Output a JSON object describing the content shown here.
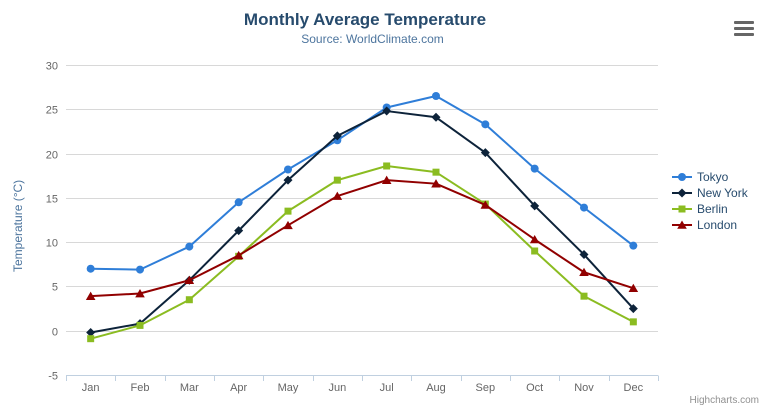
{
  "window": {
    "credits_label": "Highcharts.com",
    "menu_icon": "hamburger-menu-icon"
  },
  "chart_data": {
    "type": "line",
    "title": "Monthly Average Temperature",
    "subtitle": "Source: WorldClimate.com",
    "xlabel": "",
    "ylabel": "Temperature (°C)",
    "categories": [
      "Jan",
      "Feb",
      "Mar",
      "Apr",
      "May",
      "Jun",
      "Jul",
      "Aug",
      "Sep",
      "Oct",
      "Nov",
      "Dec"
    ],
    "ylim": [
      -5,
      30
    ],
    "yticks": [
      30,
      25,
      20,
      15,
      10,
      5,
      0,
      -5
    ],
    "grid": true,
    "legend_position": "right-middle",
    "series": [
      {
        "name": "Tokyo",
        "color": "#2f7ed8",
        "marker": "circle",
        "values": [
          7.0,
          6.9,
          9.5,
          14.5,
          18.2,
          21.5,
          25.2,
          26.5,
          23.3,
          18.3,
          13.9,
          9.6
        ]
      },
      {
        "name": "New York",
        "color": "#0d233a",
        "marker": "diamond",
        "values": [
          -0.2,
          0.8,
          5.7,
          11.3,
          17.0,
          22.0,
          24.8,
          24.1,
          20.1,
          14.1,
          8.6,
          2.5
        ]
      },
      {
        "name": "Berlin",
        "color": "#8bbc21",
        "marker": "square",
        "values": [
          -0.9,
          0.6,
          3.5,
          8.4,
          13.5,
          17.0,
          18.6,
          17.9,
          14.3,
          9.0,
          3.9,
          1.0
        ]
      },
      {
        "name": "London",
        "color": "#910000",
        "marker": "triangle",
        "values": [
          3.9,
          4.2,
          5.7,
          8.5,
          11.9,
          15.2,
          17.0,
          16.6,
          14.2,
          10.3,
          6.6,
          4.8
        ]
      }
    ],
    "colors": {
      "grid": "#d8d8d8",
      "axis_line": "#c0d0e0",
      "axis_label": "#666666",
      "title": "#274b6d",
      "subtitle": "#4d759e",
      "axis_title": "#4d759e",
      "legend_text": "#274b6d",
      "credits": "#909090"
    }
  }
}
